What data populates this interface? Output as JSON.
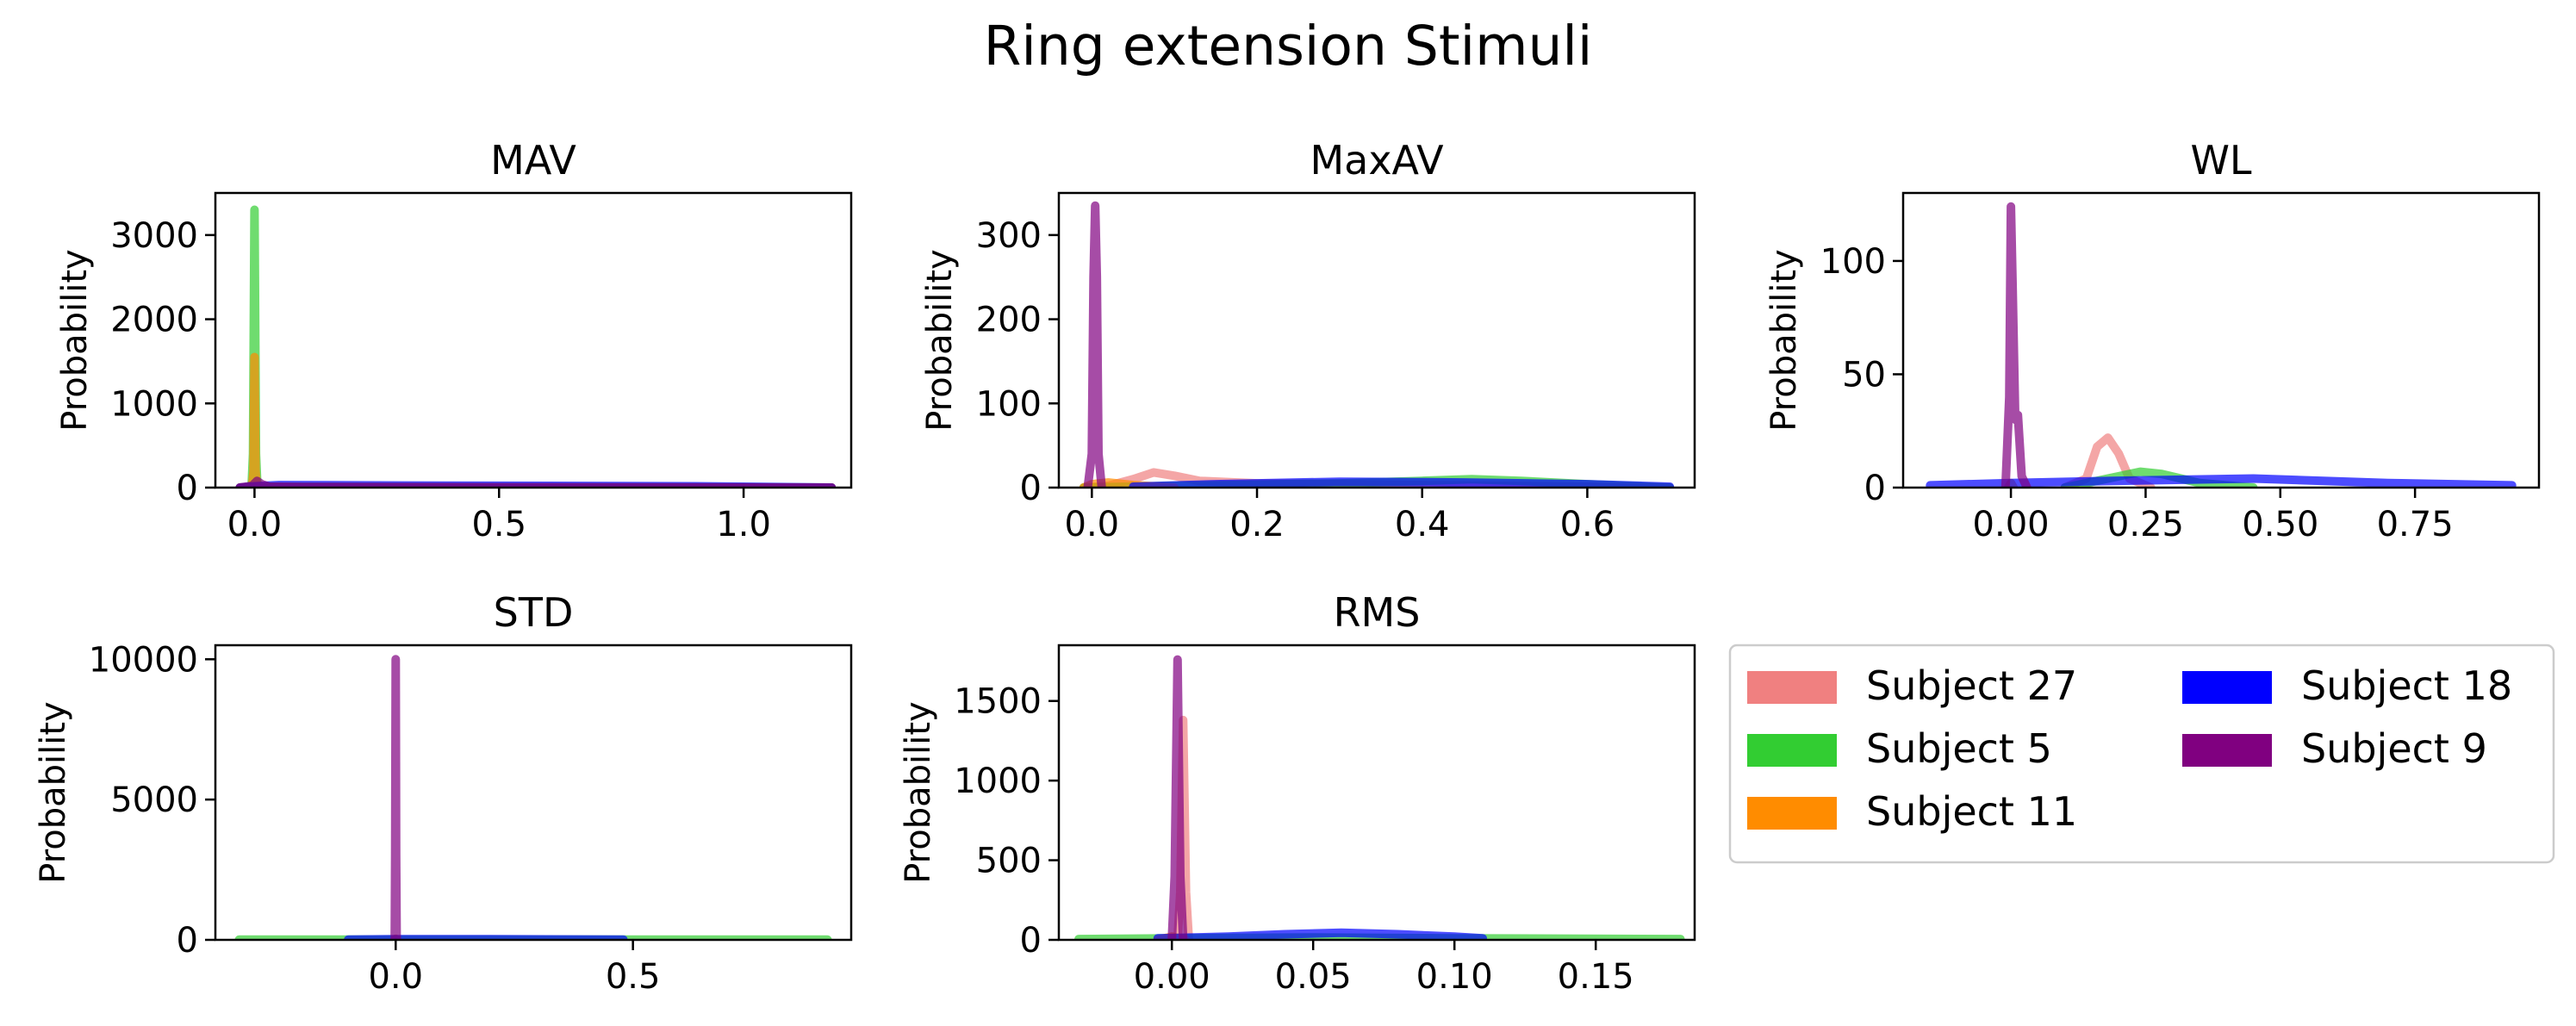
{
  "figure": {
    "title": "Ring extension Stimuli"
  },
  "legend": {
    "placement": "lower-right",
    "columns": 2,
    "entries": [
      {
        "label": "Subject 27",
        "color": "#f08080"
      },
      {
        "label": "Subject 5",
        "color": "#32cd32"
      },
      {
        "label": "Subject 11",
        "color": "#ff8c00"
      },
      {
        "label": "Subject 18",
        "color": "#0000ff"
      },
      {
        "label": "Subject 9",
        "color": "#800080"
      }
    ]
  },
  "chart_data": [
    {
      "type": "line",
      "title": "MAV",
      "ylabel": "Probability",
      "xlim": [
        -0.08,
        1.22
      ],
      "ylim": [
        0,
        3500
      ],
      "xticks": [
        {
          "v": 0.0,
          "label": "0.0"
        },
        {
          "v": 0.5,
          "label": "0.5"
        },
        {
          "v": 1.0,
          "label": "1.0"
        }
      ],
      "yticks": [
        {
          "v": 0,
          "label": "0"
        },
        {
          "v": 1000,
          "label": "1000"
        },
        {
          "v": 2000,
          "label": "2000"
        },
        {
          "v": 3000,
          "label": "3000"
        }
      ],
      "series": [
        {
          "name": "Subject 27",
          "color": "#f08080",
          "x": [
            -0.03,
            0.0,
            0.01,
            0.02,
            0.05,
            0.3,
            0.6,
            0.9,
            1.18
          ],
          "y": [
            0,
            10,
            25,
            10,
            5,
            5,
            3,
            2,
            0
          ]
        },
        {
          "name": "Subject 5",
          "color": "#32cd32",
          "x": [
            -0.03,
            -0.006,
            -0.003,
            0.0,
            0.003,
            0.006,
            0.03,
            0.5,
            1.18
          ],
          "y": [
            0,
            0,
            400,
            3300,
            400,
            0,
            10,
            5,
            0
          ]
        },
        {
          "name": "Subject 11",
          "color": "#ff8c00",
          "x": [
            -0.03,
            -0.005,
            -0.002,
            0.0,
            0.002,
            0.005,
            0.03,
            0.5,
            1.18
          ],
          "y": [
            0,
            0,
            200,
            1550,
            200,
            0,
            10,
            5,
            0
          ]
        },
        {
          "name": "Subject 18",
          "color": "#0000ff",
          "x": [
            -0.03,
            0.0,
            0.05,
            0.3,
            0.6,
            0.9,
            1.18
          ],
          "y": [
            0,
            15,
            30,
            25,
            20,
            15,
            0
          ]
        },
        {
          "name": "Subject 9",
          "color": "#800080",
          "x": [
            -0.03,
            -0.005,
            0.005,
            0.015,
            0.03,
            0.1,
            0.5,
            1.18
          ],
          "y": [
            0,
            20,
            80,
            40,
            10,
            5,
            3,
            0
          ]
        }
      ]
    },
    {
      "type": "line",
      "title": "MaxAV",
      "ylabel": "Probability",
      "xlim": [
        -0.04,
        0.73
      ],
      "ylim": [
        0,
        350
      ],
      "xticks": [
        {
          "v": 0.0,
          "label": "0.0"
        },
        {
          "v": 0.2,
          "label": "0.2"
        },
        {
          "v": 0.4,
          "label": "0.4"
        },
        {
          "v": 0.6,
          "label": "0.6"
        }
      ],
      "yticks": [
        {
          "v": 0,
          "label": "0"
        },
        {
          "v": 100,
          "label": "100"
        },
        {
          "v": 200,
          "label": "200"
        },
        {
          "v": 300,
          "label": "300"
        }
      ],
      "series": [
        {
          "name": "Subject 27",
          "color": "#f08080",
          "x": [
            -0.01,
            0.02,
            0.05,
            0.075,
            0.1,
            0.13,
            0.2,
            0.4,
            0.6,
            0.7
          ],
          "y": [
            0,
            2,
            10,
            18,
            14,
            8,
            5,
            3,
            1,
            0
          ]
        },
        {
          "name": "Subject 5",
          "color": "#32cd32",
          "x": [
            -0.01,
            0.1,
            0.3,
            0.4,
            0.46,
            0.52,
            0.6,
            0.7
          ],
          "y": [
            0,
            2,
            5,
            8,
            10,
            8,
            4,
            0
          ]
        },
        {
          "name": "Subject 11",
          "color": "#ff8c00",
          "x": [
            -0.01,
            0.0,
            0.02,
            0.05,
            0.1
          ],
          "y": [
            0,
            4,
            6,
            3,
            0
          ]
        },
        {
          "name": "Subject 18",
          "color": "#0000ff",
          "x": [
            0.05,
            0.15,
            0.3,
            0.45,
            0.6,
            0.7
          ],
          "y": [
            1,
            4,
            7,
            6,
            4,
            1
          ]
        },
        {
          "name": "Subject 9",
          "color": "#800080",
          "x": [
            -0.005,
            0.0,
            0.002,
            0.004,
            0.006,
            0.008,
            0.012
          ],
          "y": [
            0,
            40,
            250,
            335,
            250,
            40,
            0
          ]
        }
      ]
    },
    {
      "type": "line",
      "title": "WL",
      "ylabel": "Probability",
      "xlim": [
        -0.2,
        0.98
      ],
      "ylim": [
        0,
        130
      ],
      "xticks": [
        {
          "v": 0.0,
          "label": "0.00"
        },
        {
          "v": 0.25,
          "label": "0.25"
        },
        {
          "v": 0.5,
          "label": "0.50"
        },
        {
          "v": 0.75,
          "label": "0.75"
        }
      ],
      "yticks": [
        {
          "v": 0,
          "label": "0"
        },
        {
          "v": 50,
          "label": "50"
        },
        {
          "v": 100,
          "label": "100"
        }
      ],
      "series": [
        {
          "name": "Subject 27",
          "color": "#f08080",
          "x": [
            0.1,
            0.14,
            0.16,
            0.18,
            0.2,
            0.22,
            0.26
          ],
          "y": [
            0,
            4,
            18,
            22,
            15,
            4,
            0
          ]
        },
        {
          "name": "Subject 5",
          "color": "#32cd32",
          "x": [
            0.1,
            0.18,
            0.24,
            0.28,
            0.35,
            0.45
          ],
          "y": [
            0,
            4,
            7,
            6,
            2,
            0
          ]
        },
        {
          "name": "Subject 11",
          "color": "#ff8c00",
          "x": [
            -0.005,
            0.0,
            0.005
          ],
          "y": [
            0,
            2,
            0
          ]
        },
        {
          "name": "Subject 18",
          "color": "#0000ff",
          "x": [
            -0.15,
            0.0,
            0.2,
            0.45,
            0.7,
            0.93
          ],
          "y": [
            1,
            2,
            3,
            4,
            2,
            1
          ]
        },
        {
          "name": "Subject 9",
          "color": "#800080",
          "x": [
            -0.01,
            -0.003,
            0.0,
            0.003,
            0.008,
            0.013,
            0.02,
            0.03
          ],
          "y": [
            0,
            40,
            124,
            90,
            30,
            32,
            5,
            0
          ]
        }
      ]
    },
    {
      "type": "line",
      "title": "STD",
      "ylabel": "Probability",
      "xlim": [
        -0.38,
        0.96
      ],
      "ylim": [
        0,
        10500
      ],
      "xticks": [
        {
          "v": 0.0,
          "label": "0.0"
        },
        {
          "v": 0.5,
          "label": "0.5"
        }
      ],
      "yticks": [
        {
          "v": 0,
          "label": "0"
        },
        {
          "v": 5000,
          "label": "5000"
        },
        {
          "v": 10000,
          "label": "10000"
        }
      ],
      "series": [
        {
          "name": "Subject 27",
          "color": "#f08080",
          "x": [
            -0.003,
            0.0,
            0.003
          ],
          "y": [
            0,
            30,
            0
          ]
        },
        {
          "name": "Subject 5",
          "color": "#32cd32",
          "x": [
            -0.33,
            0.0,
            0.5,
            0.91
          ],
          "y": [
            5,
            10,
            10,
            5
          ]
        },
        {
          "name": "Subject 11",
          "color": "#ff8c00",
          "x": [
            -0.003,
            0.0,
            0.003
          ],
          "y": [
            0,
            40,
            0
          ]
        },
        {
          "name": "Subject 18",
          "color": "#0000ff",
          "x": [
            -0.1,
            0.0,
            0.2,
            0.48
          ],
          "y": [
            10,
            20,
            20,
            10
          ]
        },
        {
          "name": "Subject 9",
          "color": "#800080",
          "x": [
            -0.002,
            -0.001,
            0.0,
            0.001,
            0.002
          ],
          "y": [
            0,
            3000,
            10000,
            3000,
            0
          ]
        }
      ]
    },
    {
      "type": "line",
      "title": "RMS",
      "ylabel": "Probability",
      "xlim": [
        -0.04,
        0.185
      ],
      "ylim": [
        0,
        1850
      ],
      "xticks": [
        {
          "v": 0.0,
          "label": "0.00"
        },
        {
          "v": 0.05,
          "label": "0.05"
        },
        {
          "v": 0.1,
          "label": "0.10"
        },
        {
          "v": 0.15,
          "label": "0.15"
        }
      ],
      "yticks": [
        {
          "v": 0,
          "label": "0"
        },
        {
          "v": 500,
          "label": "500"
        },
        {
          "v": 1000,
          "label": "1000"
        },
        {
          "v": 1500,
          "label": "1500"
        }
      ],
      "series": [
        {
          "name": "Subject 27",
          "color": "#f08080",
          "x": [
            0.002,
            0.003,
            0.004,
            0.005,
            0.006
          ],
          "y": [
            0,
            300,
            1380,
            300,
            0
          ]
        },
        {
          "name": "Subject 5",
          "color": "#32cd32",
          "x": [
            -0.033,
            0.0,
            0.05,
            0.1,
            0.18
          ],
          "y": [
            5,
            10,
            15,
            10,
            5
          ]
        },
        {
          "name": "Subject 11",
          "color": "#ff8c00",
          "x": [
            -0.005,
            0.0,
            0.005
          ],
          "y": [
            0,
            20,
            0
          ]
        },
        {
          "name": "Subject 18",
          "color": "#0000ff",
          "x": [
            -0.005,
            0.02,
            0.04,
            0.06,
            0.08,
            0.1,
            0.11
          ],
          "y": [
            10,
            20,
            35,
            45,
            35,
            20,
            10
          ]
        },
        {
          "name": "Subject 9",
          "color": "#800080",
          "x": [
            0.0,
            0.001,
            0.002,
            0.003,
            0.004
          ],
          "y": [
            0,
            400,
            1760,
            400,
            0
          ]
        }
      ]
    }
  ]
}
